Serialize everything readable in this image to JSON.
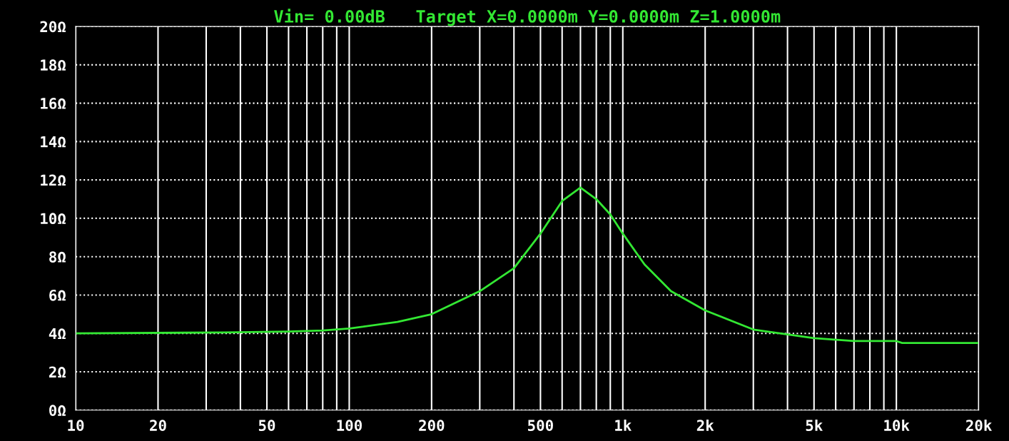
{
  "chart_data": {
    "type": "line",
    "title": "Vin= 0.00dB   Target X=0.0000m Y=0.0000m Z=1.0000m",
    "log": "x",
    "grid": true,
    "marker": "none",
    "line_style": "solid",
    "xlim": [
      10,
      20000
    ],
    "ylim": [
      0,
      20
    ],
    "xticks": [
      10,
      20,
      50,
      100,
      200,
      500,
      {
        "value": 1000,
        "label": "1k"
      },
      {
        "value": 2000,
        "label": "2k"
      },
      {
        "value": 5000,
        "label": "5k"
      },
      {
        "value": 10000,
        "label": "10k"
      },
      {
        "value": 20000,
        "label": "20k"
      }
    ],
    "yticks": [
      {
        "value": 0,
        "label": "0Ω"
      },
      {
        "value": 2,
        "label": "2Ω"
      },
      {
        "value": 4,
        "label": "4Ω"
      },
      {
        "value": 6,
        "label": "6Ω"
      },
      {
        "value": 8,
        "label": "8Ω"
      },
      {
        "value": 10,
        "label": "10Ω"
      },
      {
        "value": 12,
        "label": "12Ω"
      },
      {
        "value": 14,
        "label": "14Ω"
      },
      {
        "value": 16,
        "label": "16Ω"
      },
      {
        "value": 18,
        "label": "18Ω"
      },
      {
        "value": 20,
        "label": "20Ω"
      }
    ],
    "series": [
      {
        "color": "#33e833",
        "x": [
          10,
          35,
          60,
          80,
          100,
          150,
          200,
          300,
          400,
          500,
          600,
          700,
          800,
          900,
          1000,
          1200,
          1500,
          2000,
          3000,
          5000,
          7000,
          10000,
          10500,
          20000
        ],
        "values": [
          4.0,
          4.05,
          4.1,
          4.15,
          4.25,
          4.6,
          5.0,
          6.2,
          7.4,
          9.2,
          10.9,
          11.6,
          11.0,
          10.2,
          9.2,
          7.6,
          6.2,
          5.2,
          4.2,
          3.75,
          3.6,
          3.6,
          3.5,
          3.5
        ]
      }
    ]
  }
}
